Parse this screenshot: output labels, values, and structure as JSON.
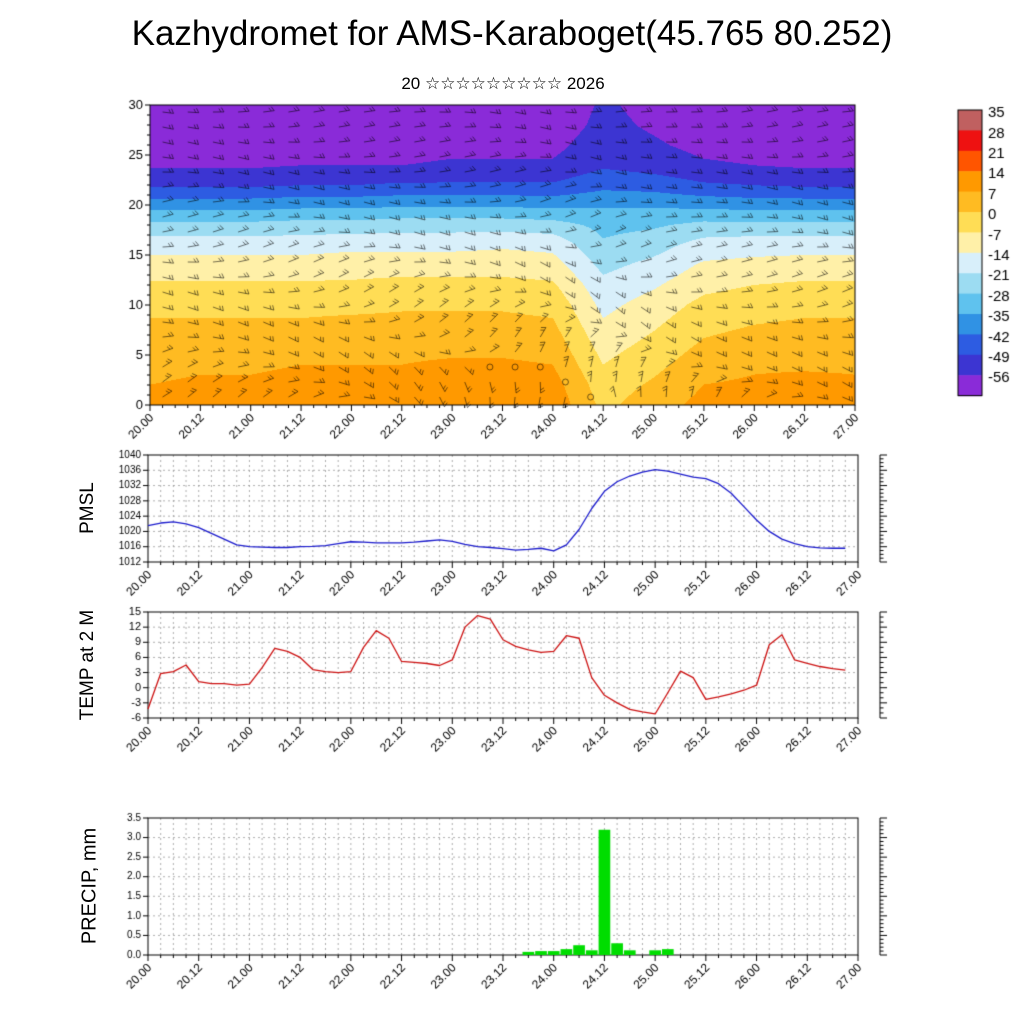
{
  "title": "Kazhydromet for AMS-Karaboget(45.765 80.252)",
  "subtitle": "20 ☆☆☆☆☆☆☆☆☆ 2026",
  "time_axis": {
    "t_max": 168,
    "major_step": 12,
    "minor_step": 3,
    "labels": [
      "20.00",
      "20.12",
      "21.00",
      "21.12",
      "22.00",
      "22.12",
      "23.00",
      "23.12",
      "24.00",
      "24.12",
      "25.00",
      "25.12",
      "26.00",
      "26.12",
      "27.00"
    ]
  },
  "chart_data": [
    {
      "name": "temperature-height-cross-section",
      "type": "heatmap",
      "ylim": [
        0,
        30
      ],
      "yticks": [
        0,
        5,
        10,
        15,
        20,
        25,
        30
      ],
      "y_minor": 1,
      "overlay": "wind-barbs",
      "grid_times": [
        0,
        12,
        24,
        36,
        48,
        60,
        72,
        84,
        96,
        108,
        120,
        132,
        144,
        156,
        168
      ],
      "grid_heights": [
        0,
        2,
        4,
        6,
        8,
        10,
        12,
        14,
        16,
        18,
        20,
        22,
        24,
        26,
        28,
        30
      ],
      "temps": [
        [
          8,
          7,
          5,
          3,
          1,
          -2,
          -6,
          -11,
          -17,
          -26,
          -38,
          -50,
          -57,
          -60,
          -62,
          -63
        ],
        [
          10,
          8,
          6,
          3,
          1,
          -2,
          -6,
          -11,
          -17,
          -26,
          -38,
          -50,
          -57,
          -60,
          -62,
          -63
        ],
        [
          9,
          8,
          6,
          4,
          1,
          -2,
          -6,
          -11,
          -17,
          -26,
          -38,
          -50,
          -57,
          -60,
          -62,
          -63
        ],
        [
          11,
          9,
          7,
          4,
          1,
          -2,
          -6,
          -11,
          -17,
          -25,
          -37,
          -49,
          -56,
          -59,
          -61,
          -62
        ],
        [
          10,
          9,
          7,
          4,
          2,
          -2,
          -6,
          -10,
          -16,
          -25,
          -37,
          -49,
          -56,
          -59,
          -61,
          -62
        ],
        [
          13,
          10,
          7,
          5,
          2,
          -1,
          -5,
          -10,
          -16,
          -24,
          -36,
          -48,
          -56,
          -59,
          -61,
          -62
        ],
        [
          12,
          10,
          8,
          5,
          2,
          -1,
          -5,
          -10,
          -16,
          -24,
          -36,
          -48,
          -55,
          -58,
          -60,
          -61
        ],
        [
          14,
          11,
          8,
          5,
          2,
          -1,
          -5,
          -10,
          -15,
          -24,
          -36,
          -48,
          -55,
          -58,
          -60,
          -61
        ],
        [
          12,
          10,
          7,
          4,
          1,
          -2,
          -6,
          -11,
          -16,
          -25,
          -37,
          -48,
          -55,
          -58,
          -60,
          -61
        ],
        [
          -2,
          -4,
          -7,
          -10,
          -13,
          -16,
          -19,
          -23,
          -27,
          -30,
          -36,
          -44,
          -50,
          -52,
          -54,
          -55
        ],
        [
          4,
          1,
          -2,
          -5,
          -8,
          -11,
          -15,
          -19,
          -24,
          -29,
          -36,
          -45,
          -52,
          -55,
          -57,
          -58
        ],
        [
          9,
          7,
          4,
          1,
          -2,
          -5,
          -9,
          -13,
          -18,
          -26,
          -37,
          -48,
          -55,
          -58,
          -60,
          -61
        ],
        [
          10,
          8,
          6,
          3,
          0,
          -3,
          -7,
          -12,
          -17,
          -26,
          -38,
          -49,
          -56,
          -59,
          -61,
          -62
        ],
        [
          11,
          9,
          6,
          4,
          1,
          -2,
          -6,
          -11,
          -17,
          -26,
          -38,
          -50,
          -57,
          -60,
          -62,
          -63
        ],
        [
          10,
          8,
          6,
          3,
          1,
          -2,
          -6,
          -11,
          -17,
          -26,
          -38,
          -50,
          -57,
          -60,
          -62,
          -63
        ]
      ],
      "colorbar": {
        "labels": [
          "35",
          "28",
          "21",
          "14",
          "7",
          "0",
          "-7",
          "-14",
          "-21",
          "-28",
          "-35",
          "-42",
          "-49",
          "-56"
        ],
        "colors": [
          "#c06060",
          "#ee1111",
          "#ff5500",
          "#ff9900",
          "#ffbb22",
          "#ffdd55",
          "#fff0a8",
          "#d8effa",
          "#9cdcf2",
          "#5fc2ee",
          "#3092e4",
          "#2d5ce2",
          "#3c35d2",
          "#8a2bd8"
        ]
      }
    },
    {
      "name": "pmsl",
      "ylabel": "PMSL",
      "type": "line",
      "color": "#1a1acc",
      "ylim": [
        1012,
        1040
      ],
      "yticks": [
        1012,
        1016,
        1020,
        1024,
        1028,
        1032,
        1036,
        1040
      ],
      "y_minor": 1,
      "ytick_decimals": 0,
      "t_step": 3,
      "values": [
        1021.5,
        1022.2,
        1022.5,
        1022.0,
        1021.0,
        1019.5,
        1018.0,
        1016.5,
        1016.0,
        1015.9,
        1015.8,
        1015.8,
        1016.0,
        1016.1,
        1016.3,
        1016.8,
        1017.3,
        1017.2,
        1017.0,
        1017.0,
        1017.0,
        1017.2,
        1017.5,
        1017.8,
        1017.4,
        1016.6,
        1016.0,
        1015.8,
        1015.5,
        1015.1,
        1015.3,
        1015.6,
        1014.9,
        1016.5,
        1020.5,
        1026.0,
        1030.5,
        1033.0,
        1034.5,
        1035.5,
        1036.2,
        1035.8,
        1035.0,
        1034.2,
        1033.8,
        1032.5,
        1030.0,
        1026.5,
        1023.0,
        1020.0,
        1018.0,
        1016.8,
        1016.0,
        1015.7,
        1015.6,
        1015.6
      ]
    },
    {
      "name": "temp-2m",
      "ylabel": "TEMP at 2 M",
      "type": "line",
      "color": "#cc1111",
      "ylim": [
        -6,
        15
      ],
      "yticks": [
        -6,
        -3,
        0,
        3,
        6,
        9,
        12,
        15
      ],
      "y_minor": 1,
      "ytick_decimals": 0,
      "t_step": 3,
      "values": [
        -4.2,
        2.8,
        3.2,
        4.5,
        1.2,
        0.8,
        0.8,
        0.5,
        0.7,
        4.0,
        7.8,
        7.2,
        6.0,
        3.6,
        3.2,
        3.0,
        3.2,
        8.0,
        11.3,
        9.8,
        5.2,
        5.0,
        4.8,
        4.4,
        5.5,
        12.0,
        14.3,
        13.6,
        9.5,
        8.2,
        7.5,
        7.0,
        7.2,
        10.3,
        9.8,
        2.0,
        -1.5,
        -3.0,
        -4.3,
        -4.8,
        -5.2,
        -1.0,
        3.3,
        2.0,
        -2.3,
        -1.8,
        -1.2,
        -0.5,
        0.5,
        8.5,
        10.5,
        5.5,
        4.8,
        4.2,
        3.8,
        3.5
      ]
    },
    {
      "name": "precip",
      "ylabel": "PRECIP, mm",
      "type": "bar",
      "color": "#00dd00",
      "ylim": [
        0,
        3.5
      ],
      "yticks": [
        0,
        0.5,
        1,
        1.5,
        2,
        2.5,
        3,
        3.5
      ],
      "y_minor": 0.1,
      "ytick_decimals": 1,
      "t_step": 3,
      "values": [
        0,
        0,
        0,
        0,
        0,
        0,
        0,
        0,
        0,
        0,
        0,
        0,
        0,
        0,
        0,
        0,
        0,
        0,
        0,
        0,
        0,
        0,
        0,
        0,
        0,
        0,
        0,
        0,
        0,
        0,
        0.08,
        0.1,
        0.1,
        0.15,
        0.25,
        0.12,
        3.2,
        0.3,
        0.12,
        0,
        0.12,
        0.15,
        0,
        0,
        0,
        0,
        0,
        0,
        0,
        0,
        0,
        0,
        0,
        0,
        0,
        0
      ]
    }
  ]
}
